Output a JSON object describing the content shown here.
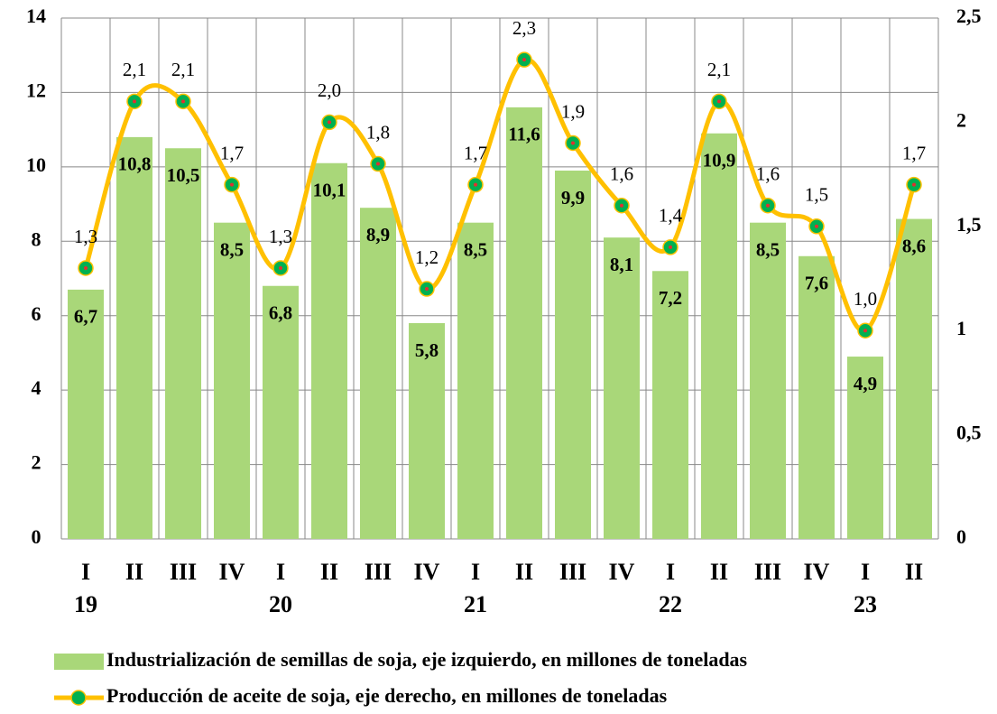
{
  "chart_data": {
    "type": "bar_line",
    "categories": [
      "I",
      "II",
      "III",
      "IV",
      "I",
      "II",
      "III",
      "IV",
      "I",
      "II",
      "III",
      "IV",
      "I",
      "II",
      "III",
      "IV",
      "I",
      "II"
    ],
    "years": [
      "19",
      null,
      null,
      null,
      "20",
      null,
      null,
      null,
      "21",
      null,
      null,
      null,
      "22",
      null,
      null,
      null,
      "23",
      null
    ],
    "series": [
      {
        "name": "Industrialización de semillas de soja, eje izquierdo, en millones de toneladas",
        "type": "bar",
        "color": "#a9d779",
        "values": [
          6.7,
          10.8,
          10.5,
          8.5,
          6.8,
          10.1,
          8.9,
          5.8,
          8.5,
          11.6,
          9.9,
          8.1,
          7.2,
          10.9,
          8.5,
          7.6,
          4.9,
          8.6
        ],
        "value_labels": [
          "6,7",
          "10,8",
          "10,5",
          "8,5",
          "6,8",
          "10,1",
          "8,9",
          "5,8",
          "8,5",
          "11,6",
          "9,9",
          "8,1",
          "7,2",
          "10,9",
          "8,5",
          "7,6",
          "4,9",
          "8,6"
        ]
      },
      {
        "name": "Producción de aceite de soja, eje derecho, en millones de toneladas",
        "type": "line",
        "axis": "y2",
        "color": "#ffc000",
        "marker_color": "#00b050",
        "values": [
          1.3,
          2.1,
          2.1,
          1.7,
          1.3,
          2.0,
          1.8,
          1.2,
          1.7,
          2.3,
          1.9,
          1.6,
          1.4,
          2.1,
          1.6,
          1.5,
          1.0,
          1.7
        ],
        "value_labels": [
          "1,3",
          "2,1",
          "2,1",
          "1,7",
          "1,3",
          "2,0",
          "1,8",
          "1,2",
          "1,7",
          "2,3",
          "1,9",
          "1,6",
          "1,4",
          "2,1",
          "1,6",
          "1,5",
          "1,0",
          "1,7"
        ]
      }
    ],
    "ylim": [
      0,
      14
    ],
    "yticks": [
      0,
      2,
      4,
      6,
      8,
      10,
      12,
      14
    ],
    "y2lim": [
      0,
      2.5
    ],
    "y2ticks": [
      0,
      {
        "value": 0.5,
        "label": "0,5"
      },
      1,
      {
        "value": 1.5,
        "label": "1,5"
      },
      2,
      {
        "value": 2.5,
        "label": "2,5"
      }
    ],
    "grid": true
  }
}
